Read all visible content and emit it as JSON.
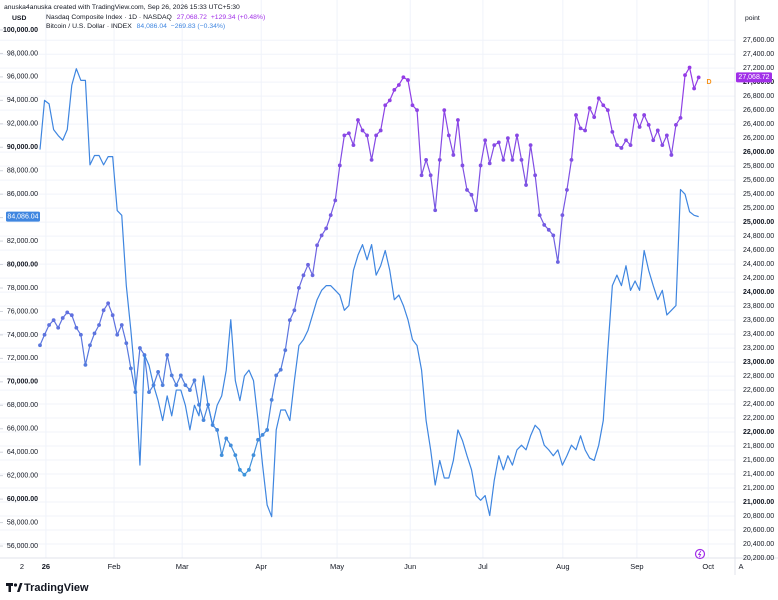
{
  "ui": {
    "attribution": "anuska4anuska created with TradingView.com, Sep 26, 2026 15:33 UTC+5:30",
    "left_unit": "USD",
    "right_unit": "point",
    "corner_left": "2",
    "corner_right": "A",
    "logo": "TradingView",
    "badge": "D"
  },
  "chart_data": {
    "type": "line",
    "xlim": [
      0,
      153
    ],
    "xticks": [
      {
        "value": 1.3,
        "label": "26"
      },
      {
        "value": 16.3,
        "label": "Feb"
      },
      {
        "value": 31.3,
        "label": "Mar"
      },
      {
        "value": 48.7,
        "label": "Apr"
      },
      {
        "value": 65.4,
        "label": "May"
      },
      {
        "value": 81.5,
        "label": "Jun"
      },
      {
        "value": 97.5,
        "label": "Jul"
      },
      {
        "value": 115.1,
        "label": "Aug"
      },
      {
        "value": 131.4,
        "label": "Sep"
      },
      {
        "value": 147.1,
        "label": "Oct"
      }
    ],
    "ylim": [
      54980,
      100680
    ],
    "yticks": [
      {
        "value": 56000,
        "label": "56,000.00"
      },
      {
        "value": 58000,
        "label": "58,000.00"
      },
      {
        "value": 60000,
        "label": "60,000.00"
      },
      {
        "value": 62000,
        "label": "62,000.00"
      },
      {
        "value": 64000,
        "label": "64,000.00"
      },
      {
        "value": 66000,
        "label": "66,000.00"
      },
      {
        "value": 68000,
        "label": "68,000.00"
      },
      {
        "value": 70000,
        "label": "70,000.00"
      },
      {
        "value": 72000,
        "label": "72,000.00"
      },
      {
        "value": 74000,
        "label": "74,000.00"
      },
      {
        "value": 76000,
        "label": "76,000.00"
      },
      {
        "value": 78000,
        "label": "78,000.00"
      },
      {
        "value": 80000,
        "label": "80,000.00"
      },
      {
        "value": 82000,
        "label": "82,000.00"
      },
      {
        "value": 84000,
        "label": "84,000.00"
      },
      {
        "value": 86000,
        "label": "86,000.00"
      },
      {
        "value": 88000,
        "label": "88,000.00"
      },
      {
        "value": 90000,
        "label": "90,000.00"
      },
      {
        "value": 92000,
        "label": "92,000.00"
      },
      {
        "value": 94000,
        "label": "94,000.00"
      },
      {
        "value": 96000,
        "label": "96,000.00"
      },
      {
        "value": 98000,
        "label": "98,000.00"
      },
      {
        "value": 100000,
        "label": "100,000.00"
      }
    ],
    "y2lim": [
      20200,
      27860
    ],
    "y2ticks": [
      {
        "value": 20200,
        "label": "20,200.00"
      },
      {
        "value": 20400,
        "label": "20,400.00"
      },
      {
        "value": 20600,
        "label": "20,600.00"
      },
      {
        "value": 20800,
        "label": "20,800.00"
      },
      {
        "value": 21000,
        "label": "21,000.00"
      },
      {
        "value": 21200,
        "label": "21,200.00"
      },
      {
        "value": 21400,
        "label": "21,400.00"
      },
      {
        "value": 21600,
        "label": "21,600.00"
      },
      {
        "value": 21800,
        "label": "21,800.00"
      },
      {
        "value": 22000,
        "label": "22,000.00"
      },
      {
        "value": 22200,
        "label": "22,200.00"
      },
      {
        "value": 22400,
        "label": "22,400.00"
      },
      {
        "value": 22600,
        "label": "22,600.00"
      },
      {
        "value": 22800,
        "label": "22,800.00"
      },
      {
        "value": 23000,
        "label": "23,000.00"
      },
      {
        "value": 23200,
        "label": "23,200.00"
      },
      {
        "value": 23400,
        "label": "23,400.00"
      },
      {
        "value": 23600,
        "label": "23,600.00"
      },
      {
        "value": 23800,
        "label": "23,800.00"
      },
      {
        "value": 24000,
        "label": "24,000.00"
      },
      {
        "value": 24200,
        "label": "24,200.00"
      },
      {
        "value": 24400,
        "label": "24,400.00"
      },
      {
        "value": 24600,
        "label": "24,600.00"
      },
      {
        "value": 24800,
        "label": "24,800.00"
      },
      {
        "value": 25000,
        "label": "25,000.00"
      },
      {
        "value": 25200,
        "label": "25,200.00"
      },
      {
        "value": 25400,
        "label": "25,400.00"
      },
      {
        "value": 25600,
        "label": "25,600.00"
      },
      {
        "value": 25800,
        "label": "25,800.00"
      },
      {
        "value": 26000,
        "label": "26,000.00"
      },
      {
        "value": 26200,
        "label": "26,200.00"
      },
      {
        "value": 26400,
        "label": "26,400.00"
      },
      {
        "value": 26600,
        "label": "26,600.00"
      },
      {
        "value": 26800,
        "label": "26,800.00"
      },
      {
        "value": 27000,
        "label": "27,000.00"
      },
      {
        "value": 27200,
        "label": "27,200.00"
      },
      {
        "value": 27400,
        "label": "27,400.00"
      },
      {
        "value": 27600,
        "label": "27,600.00"
      }
    ],
    "grid": true,
    "series": [
      {
        "name": "Nasdaq Composite Index · 1D · NASDAQ",
        "axis": "y2",
        "markers": true,
        "color": "#a12fe8",
        "gradient": [
          "#a12fe8",
          "#2aa6d8"
        ],
        "last_label": "27,068.72",
        "change_label": "+129.34 (+0.48%)",
        "values": [
          23240,
          23390,
          23530,
          23600,
          23490,
          23630,
          23710,
          23670,
          23490,
          23390,
          22960,
          23240,
          23410,
          23530,
          23740,
          23840,
          23670,
          23390,
          23530,
          23270,
          22910,
          22570,
          23200,
          23100,
          22570,
          22670,
          22860,
          22670,
          23100,
          22810,
          22670,
          22810,
          22670,
          22600,
          22740,
          22390,
          22170,
          22390,
          22100,
          22030,
          21670,
          21910,
          21810,
          21670,
          21460,
          21390,
          21460,
          21670,
          21890,
          21960,
          22030,
          22460,
          22810,
          22890,
          23170,
          23600,
          23740,
          24060,
          24240,
          24390,
          24240,
          24670,
          24810,
          24910,
          25100,
          25310,
          25810,
          26240,
          26270,
          26100,
          26460,
          26310,
          26240,
          25890,
          26240,
          26310,
          26670,
          26740,
          26890,
          26960,
          27070,
          27030,
          26670,
          26600,
          25670,
          25890,
          25670,
          25170,
          25890,
          26600,
          26240,
          25960,
          26460,
          25810,
          25460,
          25390,
          25170,
          25810,
          26170,
          25840,
          26100,
          26140,
          25890,
          26200,
          25890,
          26240,
          25890,
          25530,
          26100,
          25670,
          25100,
          24960,
          24890,
          24810,
          24430,
          25100,
          25460,
          25890,
          26530,
          26340,
          26310,
          26630,
          26500,
          26770,
          26670,
          26600,
          26290,
          26100,
          26060,
          26170,
          26100,
          26530,
          26360,
          26530,
          26390,
          26170,
          26310,
          26100,
          26240,
          25960,
          26390,
          26490,
          27100,
          27210,
          26910,
          27068.72
        ]
      },
      {
        "name": "Bitcoin / U.S. Dollar · INDEX",
        "color": "#3f86e0",
        "last_label": "84,086.04",
        "change_label": "−269.83 (−0.34%)",
        "values": [
          89800,
          94000,
          93700,
          91500,
          91000,
          90600,
          91500,
          95300,
          96700,
          95700,
          95700,
          88500,
          89300,
          89300,
          88500,
          89200,
          89200,
          84600,
          84200,
          78200,
          74400,
          70100,
          62900,
          72300,
          71400,
          69700,
          68400,
          66700,
          68800,
          67100,
          69300,
          69300,
          68000,
          65900,
          68000,
          67100,
          70500,
          68000,
          66300,
          68000,
          68800,
          71000,
          75300,
          70100,
          68400,
          70500,
          71000,
          70100,
          66700,
          62900,
          59500,
          58500,
          65900,
          67600,
          67600,
          66700,
          70100,
          73100,
          73600,
          74400,
          75700,
          77000,
          77800,
          78200,
          78200,
          77800,
          77400,
          76100,
          76500,
          79500,
          80800,
          81700,
          80400,
          81700,
          79100,
          79900,
          81200,
          79500,
          77000,
          77400,
          76500,
          75300,
          73600,
          73100,
          71000,
          66700,
          64200,
          61200,
          63300,
          61800,
          61800,
          63300,
          65900,
          65000,
          63700,
          62500,
          60300,
          59900,
          60300,
          58600,
          61600,
          63700,
          62500,
          63700,
          62900,
          64200,
          64600,
          64200,
          65400,
          66300,
          65900,
          64600,
          64200,
          63700,
          64200,
          62900,
          63700,
          64600,
          64200,
          65400,
          64200,
          63500,
          63300,
          64600,
          66700,
          72700,
          78200,
          79100,
          78200,
          79900,
          77800,
          78600,
          77800,
          81200,
          79500,
          78200,
          77000,
          77800,
          75700,
          76100,
          76500,
          86400,
          86000,
          84500,
          84200,
          84086.04
        ]
      }
    ]
  }
}
